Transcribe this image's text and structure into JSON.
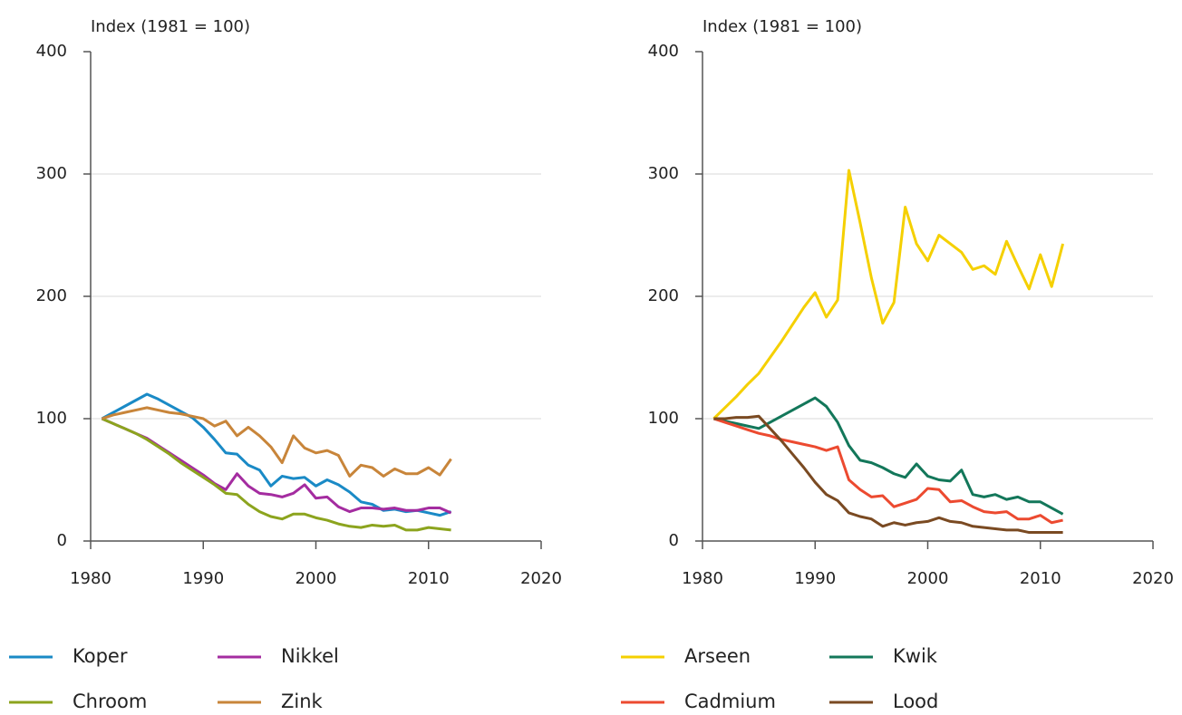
{
  "chart_data": [
    {
      "type": "line",
      "ylabel": "Index (1981 = 100)",
      "x": [
        1981,
        1982,
        1983,
        1984,
        1985,
        1986,
        1987,
        1988,
        1989,
        1990,
        1991,
        1992,
        1993,
        1994,
        1995,
        1996,
        1997,
        1998,
        1999,
        2000,
        2001,
        2002,
        2003,
        2004,
        2005,
        2006,
        2007,
        2008,
        2009,
        2010,
        2011,
        2012
      ],
      "xlim": [
        1980,
        2020
      ],
      "xticks": [
        1980,
        1990,
        2000,
        2010,
        2020
      ],
      "ylim": [
        0,
        400
      ],
      "yticks": [
        0,
        100,
        200,
        300,
        400
      ],
      "grid": true,
      "series": [
        {
          "name": "Koper",
          "color": "#1a8ac6",
          "values": [
            100,
            105,
            110,
            115,
            120,
            116,
            111,
            106,
            101,
            93,
            83,
            72,
            71,
            62,
            58,
            45,
            53,
            51,
            52,
            45,
            50,
            46,
            40,
            32,
            30,
            25,
            26,
            24,
            25,
            23,
            21,
            24
          ]
        },
        {
          "name": "Nikkel",
          "color": "#a42ca0",
          "values": [
            100,
            96,
            92,
            88,
            84,
            78,
            72,
            66,
            60,
            54,
            47,
            42,
            55,
            45,
            39,
            38,
            36,
            39,
            46,
            35,
            36,
            28,
            24,
            27,
            27,
            26,
            27,
            25,
            25,
            27,
            27,
            23
          ]
        },
        {
          "name": "Chroom",
          "color": "#8ca41e",
          "values": [
            100,
            96,
            92,
            88,
            83,
            77,
            71,
            64,
            58,
            52,
            46,
            39,
            38,
            30,
            24,
            20,
            18,
            22,
            22,
            19,
            17,
            14,
            12,
            11,
            13,
            12,
            13,
            9,
            9,
            11,
            10,
            9
          ]
        },
        {
          "name": "Zink",
          "color": "#c8853a",
          "values": [
            100,
            103,
            105,
            107,
            109,
            107,
            105,
            104,
            102,
            100,
            94,
            98,
            86,
            93,
            86,
            77,
            64,
            86,
            76,
            72,
            74,
            70,
            53,
            62,
            60,
            53,
            59,
            55,
            55,
            60,
            54,
            67
          ]
        }
      ]
    },
    {
      "type": "line",
      "ylabel": "Index (1981 = 100)",
      "x": [
        1981,
        1982,
        1983,
        1984,
        1985,
        1986,
        1987,
        1988,
        1989,
        1990,
        1991,
        1992,
        1993,
        1994,
        1995,
        1996,
        1997,
        1998,
        1999,
        2000,
        2001,
        2002,
        2003,
        2004,
        2005,
        2006,
        2007,
        2008,
        2009,
        2010,
        2011,
        2012
      ],
      "xlim": [
        1980,
        2020
      ],
      "xticks": [
        1980,
        1990,
        2000,
        2010,
        2020
      ],
      "ylim": [
        0,
        400
      ],
      "yticks": [
        0,
        100,
        200,
        300,
        400
      ],
      "grid": true,
      "series": [
        {
          "name": "Arseen",
          "color": "#f5d000",
          "values": [
            100,
            109,
            118,
            128,
            137,
            150,
            163,
            177,
            191,
            203,
            183,
            197,
            303,
            260,
            215,
            178,
            195,
            273,
            243,
            229,
            250,
            243,
            236,
            222,
            225,
            218,
            245,
            225,
            206,
            234,
            208,
            243
          ]
        },
        {
          "name": "Kwik",
          "color": "#13775a",
          "values": [
            100,
            98,
            96,
            94,
            92,
            97,
            102,
            107,
            112,
            117,
            110,
            97,
            78,
            66,
            64,
            60,
            55,
            52,
            63,
            53,
            50,
            49,
            58,
            38,
            36,
            38,
            34,
            36,
            32,
            32,
            27,
            22
          ]
        },
        {
          "name": "Cadmium",
          "color": "#ec4a30",
          "values": [
            100,
            97,
            94,
            91,
            88,
            86,
            83,
            81,
            79,
            77,
            74,
            77,
            50,
            42,
            36,
            37,
            28,
            31,
            34,
            43,
            42,
            32,
            33,
            28,
            24,
            23,
            24,
            18,
            18,
            21,
            15,
            17
          ]
        },
        {
          "name": "Lood",
          "color": "#7a4a22",
          "values": [
            100,
            100,
            101,
            101,
            102,
            92,
            82,
            71,
            60,
            48,
            38,
            33,
            23,
            20,
            18,
            12,
            15,
            13,
            15,
            16,
            19,
            16,
            15,
            12,
            11,
            10,
            9,
            9,
            7,
            7,
            7,
            7
          ]
        }
      ]
    }
  ]
}
